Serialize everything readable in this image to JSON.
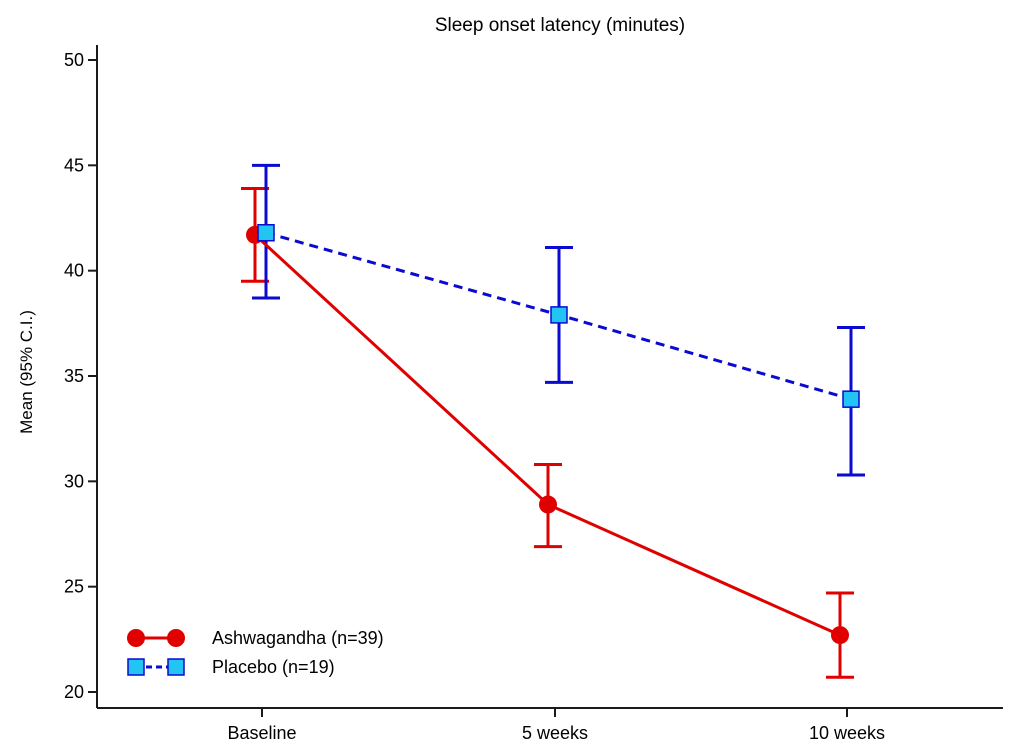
{
  "chart_data": {
    "type": "line",
    "title": "Sleep onset latency (minutes)",
    "xlabel": "",
    "ylabel": "Mean (95% C.I.)",
    "categories": [
      "Baseline",
      "5 weeks",
      "10 weeks"
    ],
    "ylim": [
      20,
      50
    ],
    "yticks": [
      20,
      25,
      30,
      35,
      40,
      45,
      50
    ],
    "grid": false,
    "legend_position": "bottom-left",
    "series": [
      {
        "name": "Ashwagandha (n=39)",
        "color": "#e00000",
        "line_style": "solid",
        "marker": "circle",
        "values": [
          41.7,
          28.9,
          22.7
        ],
        "ci_lower": [
          39.5,
          26.9,
          20.7
        ],
        "ci_upper": [
          43.9,
          30.8,
          24.7
        ]
      },
      {
        "name": "Placebo (n=19)",
        "color": "#0a0ad0",
        "marker_fill": "#21c4f2",
        "line_style": "dashed",
        "marker": "square",
        "values": [
          41.8,
          37.9,
          33.9
        ],
        "ci_lower": [
          38.7,
          34.7,
          30.3
        ],
        "ci_upper": [
          45.0,
          41.1,
          37.3
        ]
      }
    ]
  }
}
